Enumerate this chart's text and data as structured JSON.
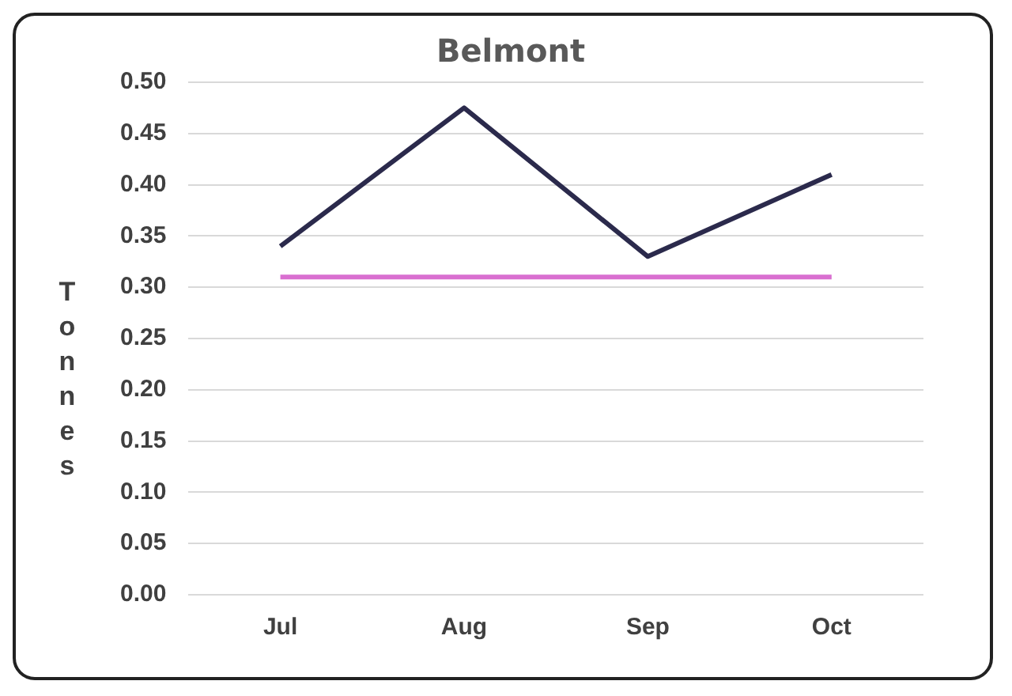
{
  "chart_data": {
    "type": "line",
    "title": "Belmont",
    "ylabel": "Tonnes",
    "categories": [
      "Jul",
      "Aug",
      "Sep",
      "Oct"
    ],
    "series": [
      {
        "color": "#2b2a4c",
        "values": [
          0.34,
          0.475,
          0.33,
          0.41
        ]
      },
      {
        "color": "#d96fd0",
        "values": [
          0.31,
          0.31,
          0.31,
          0.31
        ]
      }
    ],
    "ylim": [
      0,
      0.5
    ],
    "yticks": [
      {
        "value": 0,
        "label": "0.00"
      },
      {
        "value": 0.05,
        "label": "0.05"
      },
      {
        "value": 0.1,
        "label": "0.10"
      },
      {
        "value": 0.15,
        "label": "0.15"
      },
      {
        "value": 0.2,
        "label": "0.20"
      },
      {
        "value": 0.25,
        "label": "0.25"
      },
      {
        "value": 0.3,
        "label": "0.30"
      },
      {
        "value": 0.35,
        "label": "0.35"
      },
      {
        "value": 0.4,
        "label": "0.40"
      },
      {
        "value": 0.45,
        "label": "0.45"
      },
      {
        "value": 0.5,
        "label": "0.50"
      }
    ],
    "grid": "y",
    "legend": false,
    "marker": "none",
    "line_style": "solid"
  }
}
